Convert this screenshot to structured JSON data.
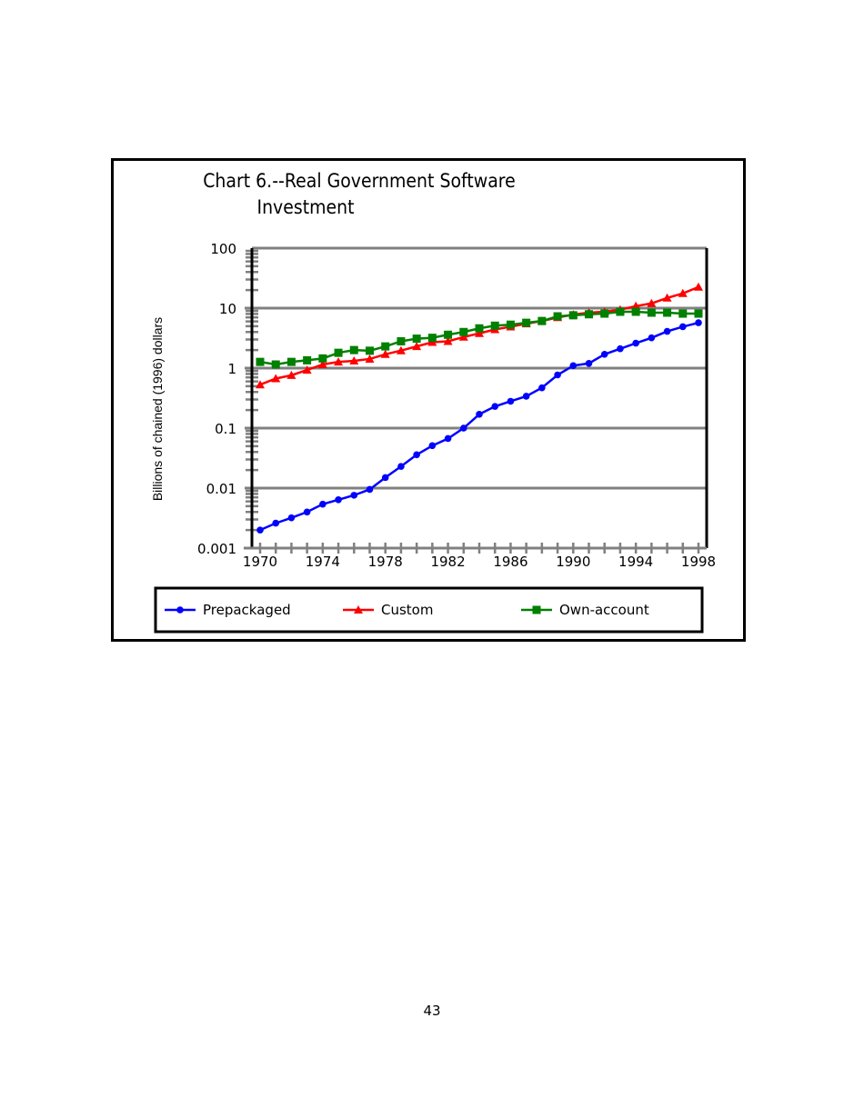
{
  "page": {
    "number": "43"
  },
  "chart_data": {
    "type": "line",
    "title": "Chart 6.--Real Government Software Investment",
    "title_lines": [
      "Chart 6.--Real Government Software",
      "Investment"
    ],
    "xlabel": "",
    "ylabel": "Billions of chained (1996) dollars",
    "yscale": "log",
    "ylim": [
      0.001,
      100
    ],
    "yticks": [
      "100",
      "10",
      "1",
      "0.1",
      "0.01",
      "0.001"
    ],
    "xlim": [
      1970,
      1998
    ],
    "xticks": [
      "1970",
      "1974",
      "1978",
      "1982",
      "1986",
      "1990",
      "1994",
      "1998"
    ],
    "grid": "horizontal major",
    "legend_position": "bottom",
    "x": [
      1970,
      1971,
      1972,
      1973,
      1974,
      1975,
      1976,
      1977,
      1978,
      1979,
      1980,
      1981,
      1982,
      1983,
      1984,
      1985,
      1986,
      1987,
      1988,
      1989,
      1990,
      1991,
      1992,
      1993,
      1994,
      1995,
      1996,
      1997,
      1998
    ],
    "series": [
      {
        "name": "Prepackaged",
        "color": "#0000ff",
        "marker": "circle",
        "values": [
          0.002,
          0.0026,
          0.0032,
          0.004,
          0.0054,
          0.0064,
          0.0076,
          0.0095,
          0.015,
          0.023,
          0.036,
          0.051,
          0.067,
          0.1,
          0.17,
          0.23,
          0.28,
          0.34,
          0.47,
          0.77,
          1.1,
          1.2,
          1.7,
          2.1,
          2.6,
          3.2,
          4.1,
          4.9,
          5.7
        ]
      },
      {
        "name": "Custom",
        "color": "#ff0000",
        "marker": "triangle",
        "values": [
          0.53,
          0.67,
          0.76,
          0.93,
          1.15,
          1.27,
          1.32,
          1.42,
          1.7,
          1.96,
          2.3,
          2.7,
          2.8,
          3.3,
          3.8,
          4.4,
          4.9,
          5.5,
          6.1,
          7.0,
          7.8,
          8.4,
          8.7,
          9.4,
          10.8,
          12.0,
          14.8,
          17.6,
          22.5
        ]
      },
      {
        "name": "Own-account",
        "color": "#008000",
        "marker": "square",
        "values": [
          1.27,
          1.15,
          1.27,
          1.35,
          1.45,
          1.8,
          2.0,
          1.95,
          2.3,
          2.8,
          3.1,
          3.2,
          3.6,
          4.0,
          4.6,
          5.1,
          5.3,
          5.7,
          6.1,
          7.3,
          7.6,
          7.9,
          8.1,
          8.7,
          8.7,
          8.4,
          8.4,
          8.1,
          8.1
        ]
      }
    ]
  }
}
